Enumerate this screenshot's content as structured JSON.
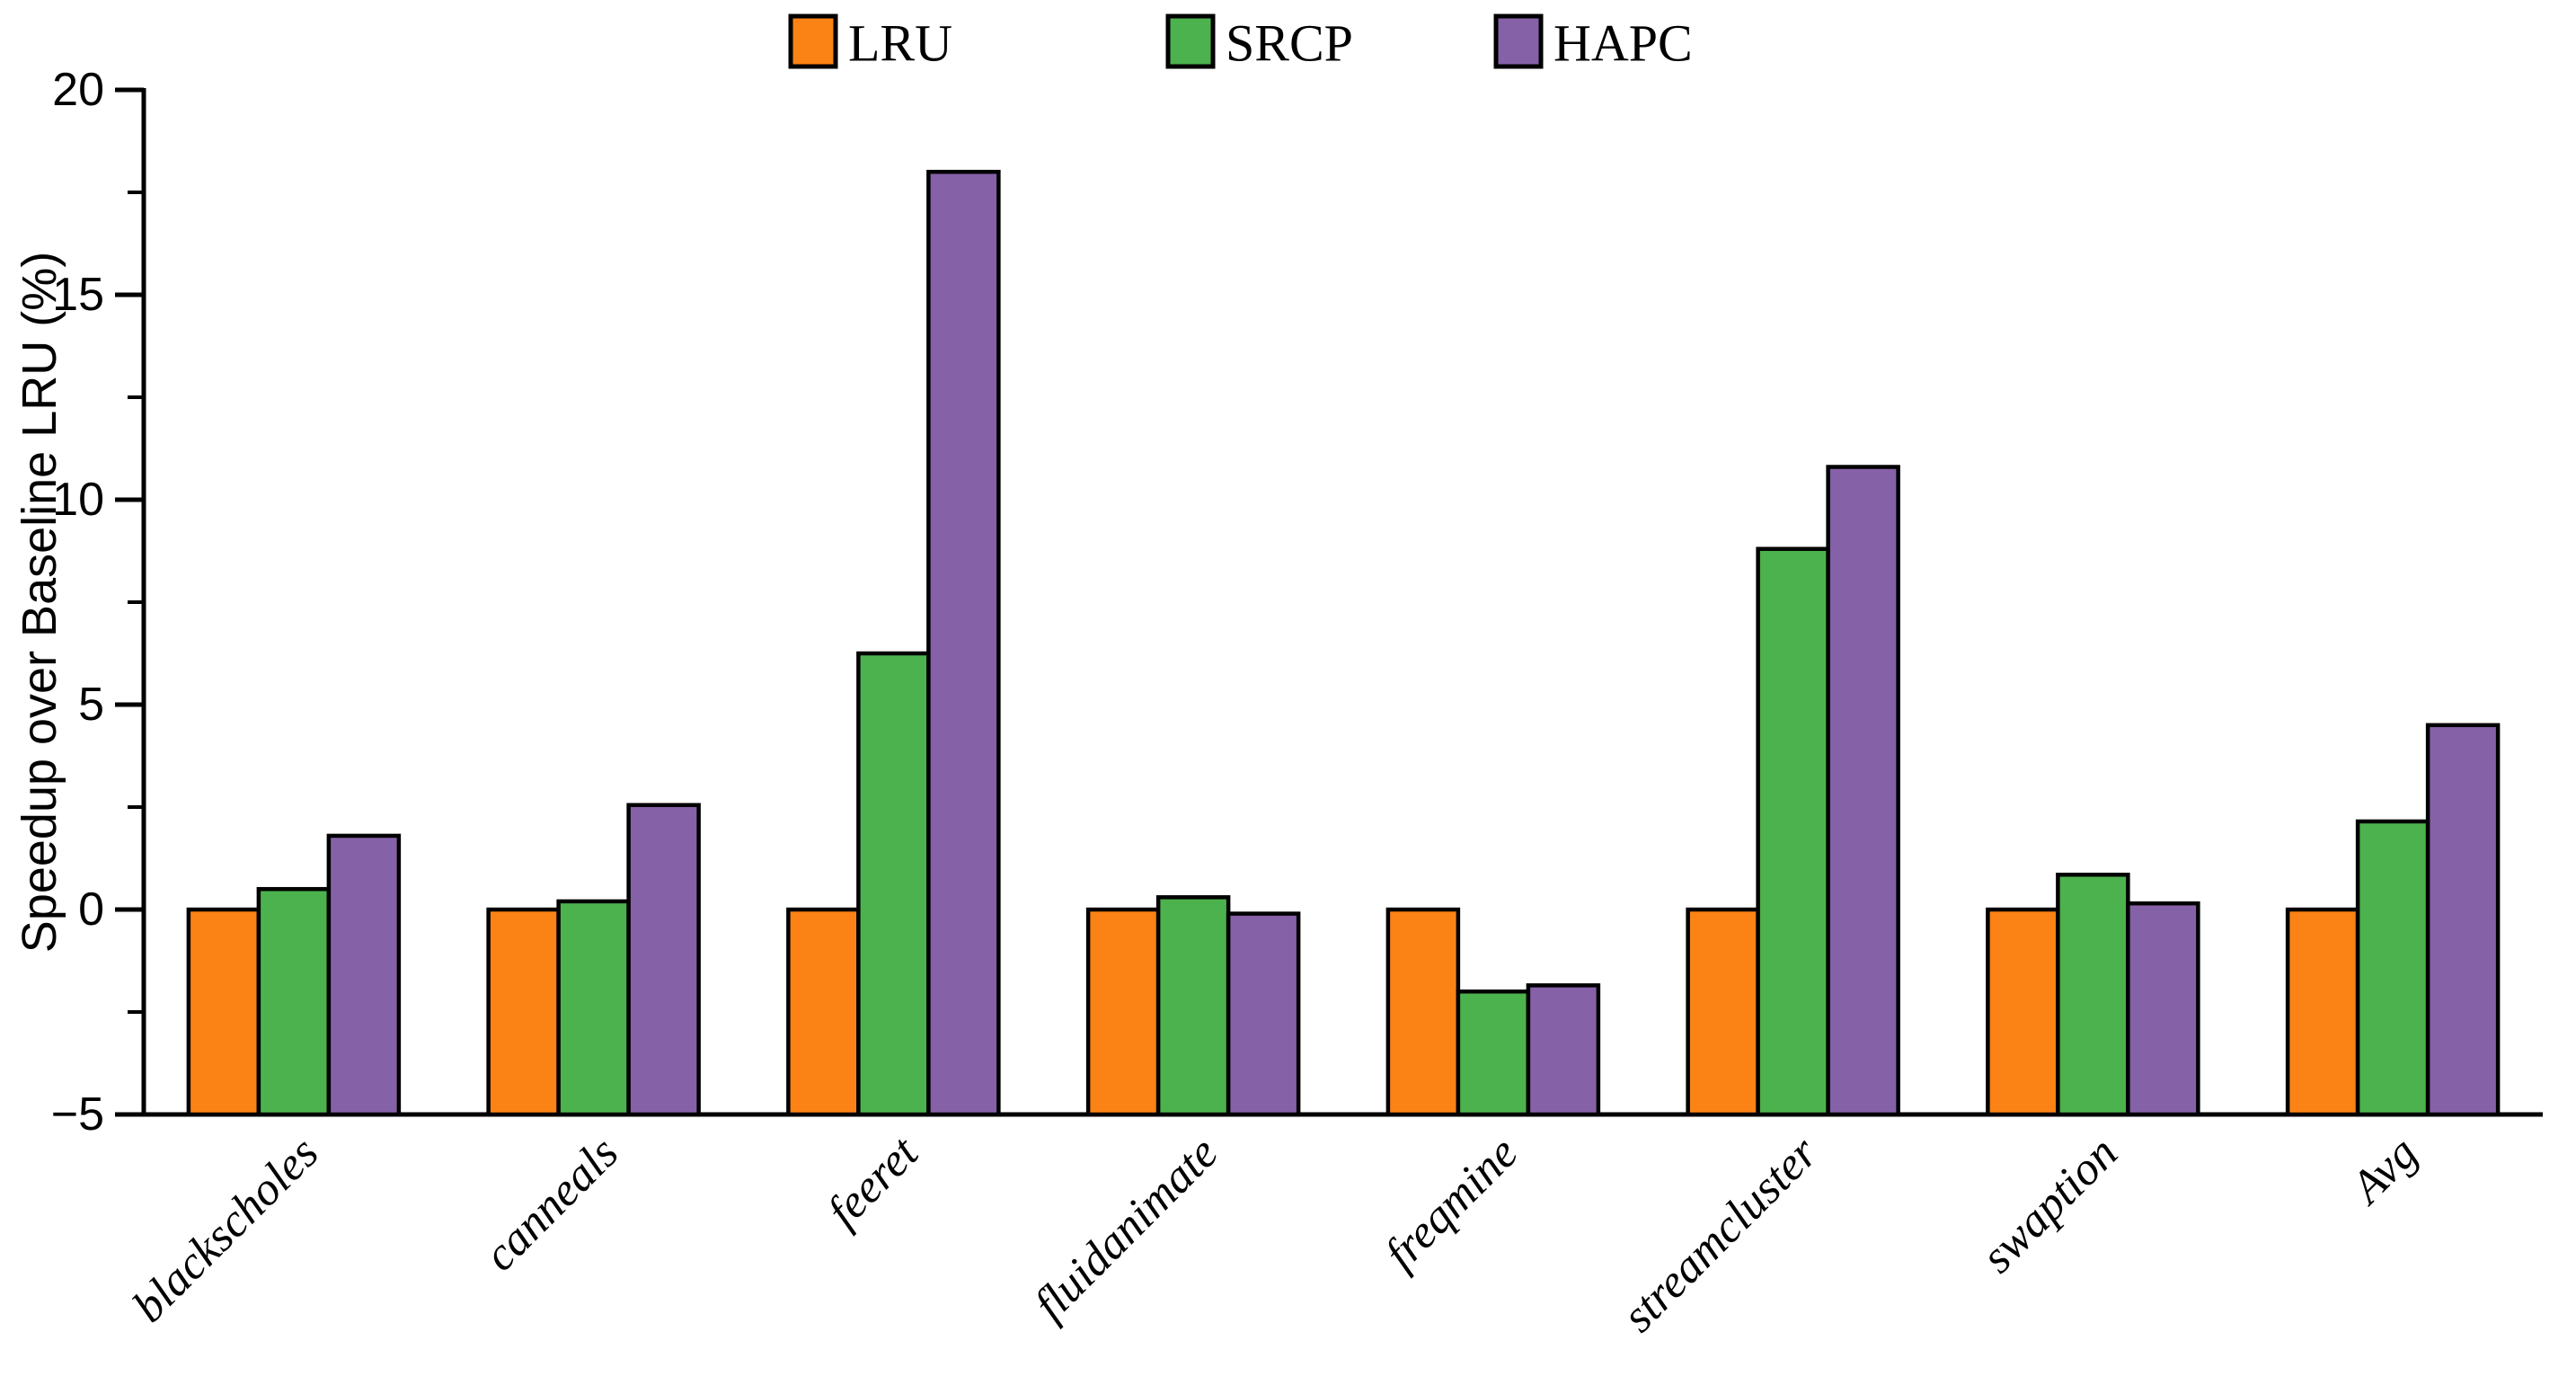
{
  "chart_data": {
    "type": "bar",
    "title": "",
    "xlabel": "",
    "ylabel": "Speedup over Baseline LRU (%)",
    "ylim": [
      -5,
      20
    ],
    "ytick_values": [
      20,
      15,
      10,
      5,
      0,
      -5
    ],
    "ytick_labels": [
      "20",
      "15",
      "10",
      "5",
      "0",
      "−5"
    ],
    "ytick_minor_values": [
      17.5,
      12.5,
      7.5,
      2.5,
      -2.5
    ],
    "bar_baseline": -5,
    "grid": false,
    "legend_position": "top-center",
    "axis_color": "#000000",
    "bar_outline_color": "#000000",
    "categories": [
      "blackscholes",
      "canneals",
      "feeret",
      "fluidanimate",
      "freqmine",
      "streamcluster",
      "swaption",
      "Avg"
    ],
    "series": [
      {
        "name": "LRU",
        "color": "#FB8214",
        "values": [
          0,
          0,
          0,
          0,
          0,
          0,
          0,
          0
        ]
      },
      {
        "name": "SRCP",
        "color": "#4CB24D",
        "values": [
          0.5,
          0.2,
          6.25,
          0.3,
          -2.0,
          8.8,
          0.85,
          2.15
        ]
      },
      {
        "name": "HAPC",
        "color": "#8561A8",
        "values": [
          1.8,
          2.55,
          18.0,
          -0.1,
          -1.85,
          10.8,
          0.15,
          4.5
        ]
      }
    ]
  }
}
